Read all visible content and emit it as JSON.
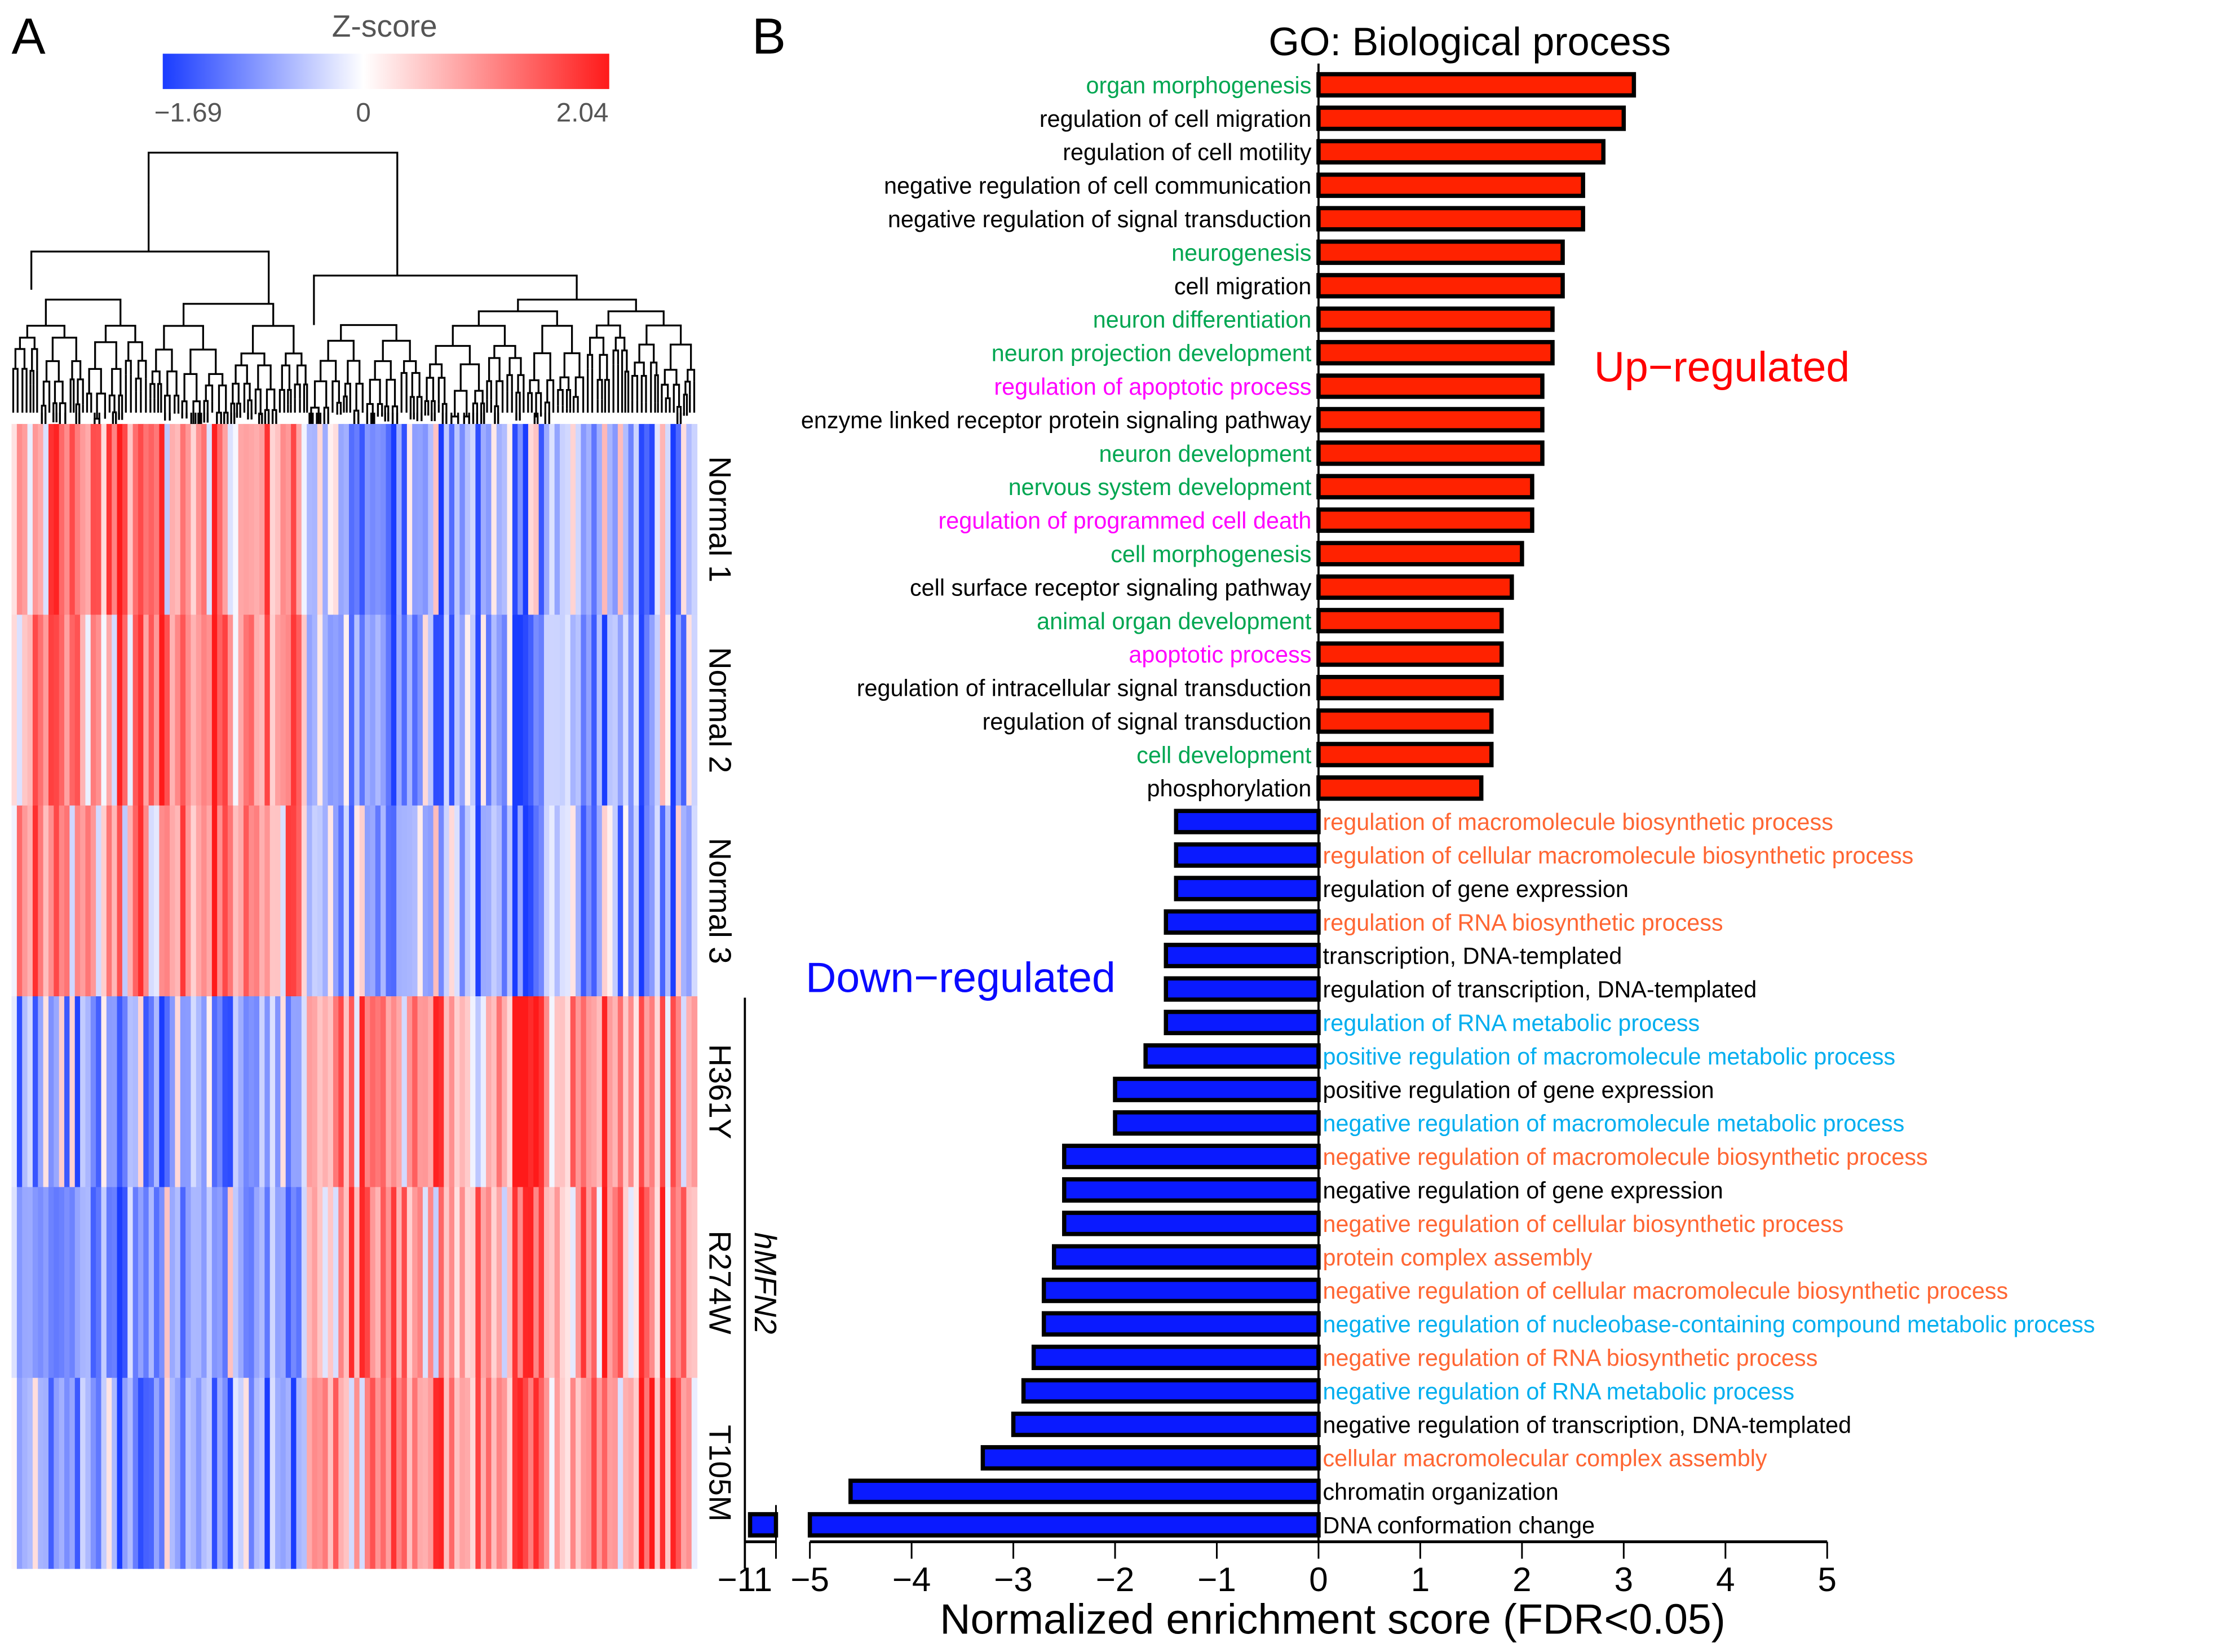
{
  "panel_a": {
    "panel_letter": "A",
    "colorbar": {
      "title": "Z-score",
      "min_label": "−1.69",
      "mid_label": "0",
      "max_label": "2.04",
      "min": -1.69,
      "max": 2.04,
      "low_color": "#1a3cff",
      "high_color": "#ff1a1a"
    },
    "row_labels": [
      "Normal 1",
      "Normal 2",
      "Normal 3",
      "H361Y",
      "R274W",
      "T105M"
    ],
    "group_label": "hMFN2"
  },
  "chart_data": {
    "type": "bar",
    "panel_letter": "B",
    "title": "GO: Biological process",
    "xlabel": "Normalized enrichment score (FDR<0.05)",
    "ylabel": "",
    "xlim": [
      -11,
      5
    ],
    "axis_break": [
      -10.4,
      -5
    ],
    "xticks": [
      "-11",
      "-5",
      "-4",
      "-3",
      "-2",
      "-1",
      "0",
      "1",
      "2",
      "3",
      "4",
      "5"
    ],
    "annotations": {
      "up": "Up−regulated",
      "down": "Down−regulated"
    },
    "colors": {
      "up_bar": "#ff2200",
      "down_bar": "#0a1aff",
      "up_text": "#ff0000",
      "down_text": "#0a0aff",
      "green": "#00a651",
      "magenta": "#ff00ff",
      "orange": "#ff6633",
      "cyan": "#00aeef",
      "black": "#000000"
    },
    "categories": [
      {
        "label": "organ morphogenesis",
        "value": 3.1,
        "color": "green"
      },
      {
        "label": "regulation of cell migration",
        "value": 3.0,
        "color": "black"
      },
      {
        "label": "regulation of cell motility",
        "value": 2.8,
        "color": "black"
      },
      {
        "label": "negative regulation of cell communication",
        "value": 2.6,
        "color": "black"
      },
      {
        "label": "negative regulation of signal transduction",
        "value": 2.6,
        "color": "black"
      },
      {
        "label": "neurogenesis",
        "value": 2.4,
        "color": "green"
      },
      {
        "label": "cell migration",
        "value": 2.4,
        "color": "black"
      },
      {
        "label": "neuron differentiation",
        "value": 2.3,
        "color": "green"
      },
      {
        "label": "neuron projection development",
        "value": 2.3,
        "color": "green"
      },
      {
        "label": "regulation of apoptotic process",
        "value": 2.2,
        "color": "magenta"
      },
      {
        "label": "enzyme linked receptor protein signaling pathway",
        "value": 2.2,
        "color": "black"
      },
      {
        "label": "neuron development",
        "value": 2.2,
        "color": "green"
      },
      {
        "label": "nervous system development",
        "value": 2.1,
        "color": "green"
      },
      {
        "label": "regulation of programmed cell death",
        "value": 2.1,
        "color": "magenta"
      },
      {
        "label": "cell morphogenesis",
        "value": 2.0,
        "color": "green"
      },
      {
        "label": "cell surface receptor signaling pathway",
        "value": 1.9,
        "color": "black"
      },
      {
        "label": "animal organ development",
        "value": 1.8,
        "color": "green"
      },
      {
        "label": "apoptotic process",
        "value": 1.8,
        "color": "magenta"
      },
      {
        "label": "regulation of intracellular signal transduction",
        "value": 1.8,
        "color": "black"
      },
      {
        "label": "regulation of signal transduction",
        "value": 1.7,
        "color": "black"
      },
      {
        "label": "cell development",
        "value": 1.7,
        "color": "green"
      },
      {
        "label": "phosphorylation",
        "value": 1.6,
        "color": "black"
      },
      {
        "label": "regulation of macromolecule biosynthetic process",
        "value": -1.4,
        "color": "orange"
      },
      {
        "label": "regulation of cellular macromolecule biosynthetic process",
        "value": -1.4,
        "color": "orange"
      },
      {
        "label": "regulation of gene expression",
        "value": -1.4,
        "color": "black"
      },
      {
        "label": "regulation of RNA biosynthetic process",
        "value": -1.5,
        "color": "orange"
      },
      {
        "label": "transcription, DNA-templated",
        "value": -1.5,
        "color": "black"
      },
      {
        "label": "regulation of transcription, DNA-templated",
        "value": -1.5,
        "color": "black"
      },
      {
        "label": "regulation of RNA metabolic process",
        "value": -1.5,
        "color": "cyan"
      },
      {
        "label": "positive regulation of macromolecule metabolic process",
        "value": -1.7,
        "color": "cyan"
      },
      {
        "label": "positive regulation of gene expression",
        "value": -2.0,
        "color": "black"
      },
      {
        "label": "negative regulation of macromolecule metabolic process",
        "value": -2.0,
        "color": "cyan"
      },
      {
        "label": "negative regulation of macromolecule biosynthetic process",
        "value": -2.5,
        "color": "orange"
      },
      {
        "label": "negative regulation of gene expression",
        "value": -2.5,
        "color": "black"
      },
      {
        "label": "negative regulation of cellular biosynthetic process",
        "value": -2.5,
        "color": "orange"
      },
      {
        "label": "protein complex assembly",
        "value": -2.6,
        "color": "orange"
      },
      {
        "label": "negative regulation of cellular macromolecule biosynthetic process",
        "value": -2.7,
        "color": "orange"
      },
      {
        "label": "negative regulation of nucleobase-containing compound metabolic process",
        "value": -2.7,
        "color": "cyan"
      },
      {
        "label": "negative regulation of RNA biosynthetic process",
        "value": -2.8,
        "color": "orange"
      },
      {
        "label": "negative regulation of RNA metabolic process",
        "value": -2.9,
        "color": "cyan"
      },
      {
        "label": "negative regulation of transcription, DNA-templated",
        "value": -3.0,
        "color": "black"
      },
      {
        "label": "cellular macromolecular complex assembly",
        "value": -3.3,
        "color": "orange"
      },
      {
        "label": "chromatin organization",
        "value": -4.6,
        "color": "black"
      },
      {
        "label": "DNA conformation change",
        "value": -10.9,
        "color": "black"
      }
    ]
  }
}
